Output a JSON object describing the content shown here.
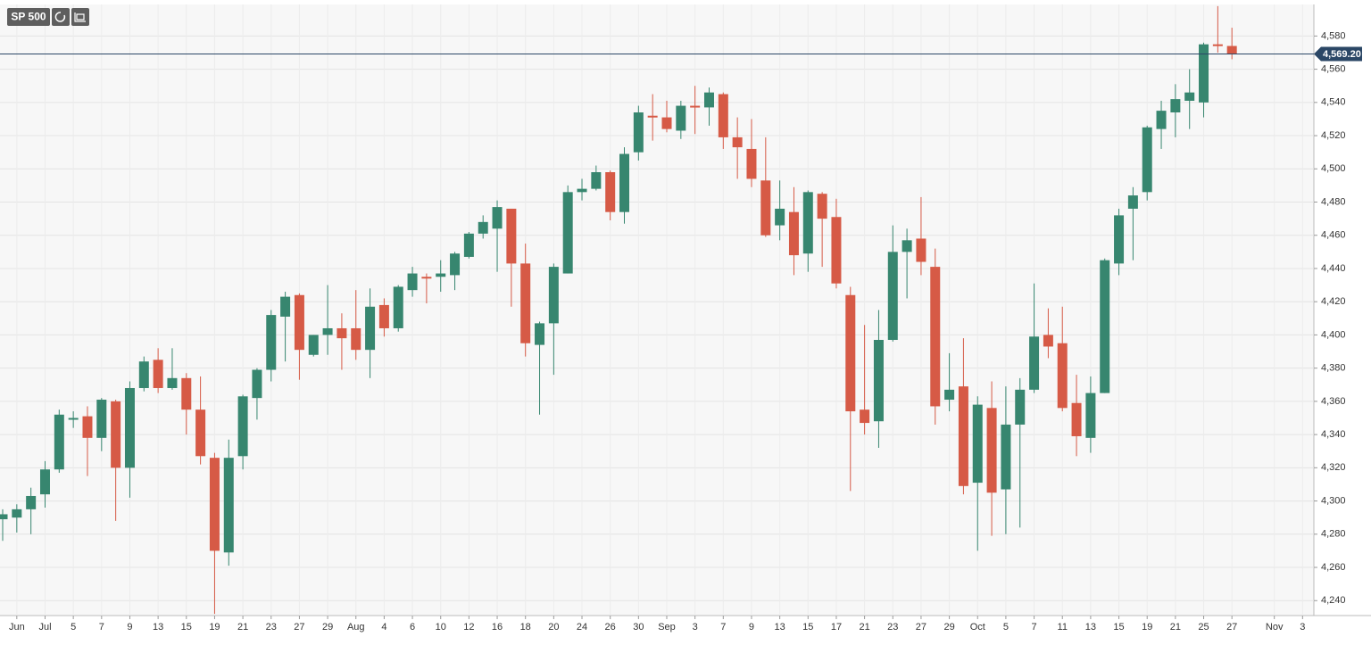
{
  "chart_data": {
    "type": "candlestick",
    "title": "SP 500",
    "categories": [
      null,
      "Jun",
      null,
      "Jul",
      null,
      "5",
      null,
      "7",
      null,
      "9",
      null,
      "13",
      null,
      "15",
      null,
      "19",
      null,
      "21",
      null,
      "23",
      null,
      "27",
      null,
      "29",
      null,
      "Aug",
      null,
      "4",
      null,
      "6",
      null,
      "10",
      null,
      "12",
      null,
      "16",
      null,
      "18",
      null,
      "20",
      null,
      "24",
      null,
      "26",
      null,
      "30",
      null,
      "Sep",
      null,
      "3",
      null,
      "7",
      null,
      "9",
      null,
      "13",
      null,
      "15",
      null,
      "17",
      null,
      "21",
      null,
      "23",
      null,
      "27",
      null,
      "29",
      null,
      "Oct",
      null,
      "5",
      null,
      "7",
      null,
      "11",
      null,
      "13",
      null,
      "15",
      null,
      "19",
      null,
      "21",
      null,
      "25",
      null,
      "27",
      null,
      null,
      "Nov",
      null,
      "3"
    ],
    "open": [
      4289,
      4290,
      4295,
      4304,
      4319,
      4349.5,
      4351,
      4338,
      4360,
      4320,
      4368,
      4385,
      4368,
      4374,
      4355,
      4326,
      4269,
      4327,
      4362,
      4379,
      4411,
      4424,
      4388,
      4400,
      4404,
      4404,
      4391,
      4418,
      4404,
      4427,
      4435,
      4435,
      4436,
      4447,
      4461,
      4464,
      4476,
      4443,
      4394,
      4407,
      4437,
      4486,
      4488,
      4498,
      4474,
      4510,
      4532,
      4531,
      4523,
      4538,
      4537,
      4545,
      4519,
      4512,
      4493,
      4466,
      4474,
      4449,
      4485,
      4471,
      4424,
      4355,
      4348,
      4397,
      4450,
      4458,
      4441,
      4361,
      4369,
      4311,
      4356,
      4307,
      4346,
      4367,
      4400,
      4395,
      4359,
      4338,
      4365,
      4443,
      4476,
      4486,
      4524,
      4534,
      4541,
      4540,
      4575,
      4574,
      null,
      null,
      null,
      null,
      null
    ],
    "high": [
      4295,
      4298,
      4308,
      4324,
      4355,
      4354,
      4357,
      4362,
      4361,
      4372,
      4387,
      4392,
      4392,
      4377,
      4375,
      4329,
      4337,
      4364,
      4380,
      4415,
      4426,
      4425,
      4400,
      4430,
      4413,
      4427,
      4428,
      4422,
      4430,
      4441,
      4437,
      4445,
      4450,
      4462,
      4472,
      4481,
      4476,
      4455,
      4408,
      4443,
      4490,
      4494,
      4502,
      4499,
      4513,
      4538,
      4545,
      4541,
      4541,
      4550,
      4549,
      4546,
      4531,
      4530,
      4519,
      4493,
      4489,
      4487,
      4486,
      4482,
      4429,
      4406,
      4415,
      4466,
      4464,
      4483,
      4452,
      4389,
      4398,
      4363,
      4372,
      4369,
      4374,
      4431,
      4416,
      4417,
      4376,
      4375,
      4446,
      4476,
      4489,
      4526,
      4541,
      4551,
      4560,
      4576,
      4598,
      4585,
      null,
      null,
      null,
      null,
      null
    ],
    "low": [
      4276,
      4281,
      4280,
      4296,
      4317,
      4344,
      4315,
      4330,
      4288,
      4302,
      4366,
      4365,
      4367,
      4340,
      4322,
      4232,
      4261,
      4319,
      4349,
      4372,
      4384,
      4373,
      4387,
      4388,
      4379,
      4385,
      4374,
      4399,
      4402,
      4423,
      4419,
      4426,
      4427,
      4446,
      4458,
      4438,
      4417,
      4387,
      4352,
      4376,
      4437,
      4481,
      4487,
      4469,
      4467,
      4505,
      4517,
      4522,
      4518,
      4521,
      4526,
      4512,
      4494,
      4489,
      4459,
      4457,
      4436,
      4438,
      4441,
      4428,
      4306,
      4340,
      4332,
      4396,
      4422,
      4436,
      4346,
      4354,
      4304,
      4270,
      4279,
      4280,
      4284,
      4365,
      4386,
      4354,
      4327,
      4329,
      4365,
      4436,
      4445,
      4481,
      4512,
      4519,
      4524,
      4531,
      4570,
      4566,
      null,
      null,
      null,
      null,
      null
    ],
    "close": [
      4292,
      4295,
      4303,
      4319,
      4352,
      4350,
      4338,
      4361,
      4320,
      4368,
      4384,
      4368,
      4374,
      4355,
      4327,
      4270,
      4326,
      4363,
      4379,
      4412,
      4423,
      4391,
      4400,
      4404,
      4398,
      4391,
      4417,
      4404,
      4429,
      4437,
      4434,
      4437,
      4449,
      4461,
      4468,
      4477,
      4443,
      4395,
      4407,
      4441,
      4486,
      4488,
      4498,
      4474,
      4509,
      4534,
      4531,
      4524,
      4538,
      4537,
      4546,
      4519,
      4513,
      4494,
      4460,
      4476,
      4448,
      4486,
      4470,
      4431,
      4354,
      4347,
      4397,
      4450,
      4457,
      4444,
      4357,
      4367,
      4309,
      4358,
      4305,
      4346,
      4367,
      4399,
      4393,
      4356,
      4339,
      4365,
      4445,
      4472,
      4484,
      4525,
      4535,
      4542,
      4546,
      4575,
      4574,
      4569.2,
      null,
      null,
      null,
      null,
      null
    ],
    "up_color": "#37866f",
    "down_color": "#d65a46",
    "last_price": {
      "value": 4569.2,
      "label": "4,569.20"
    },
    "ylim": [
      4231,
      4599
    ],
    "yticks": [
      {
        "value": 4240,
        "label": "4,240"
      },
      {
        "value": 4260,
        "label": "4,260"
      },
      {
        "value": 4280,
        "label": "4,280"
      },
      {
        "value": 4300,
        "label": "4,300"
      },
      {
        "value": 4320,
        "label": "4,320"
      },
      {
        "value": 4340,
        "label": "4,340"
      },
      {
        "value": 4360,
        "label": "4,360"
      },
      {
        "value": 4380,
        "label": "4,380"
      },
      {
        "value": 4400,
        "label": "4,400"
      },
      {
        "value": 4420,
        "label": "4,420"
      },
      {
        "value": 4440,
        "label": "4,440"
      },
      {
        "value": 4460,
        "label": "4,460"
      },
      {
        "value": 4480,
        "label": "4,480"
      },
      {
        "value": 4500,
        "label": "4,500"
      },
      {
        "value": 4520,
        "label": "4,520"
      },
      {
        "value": 4540,
        "label": "4,540"
      },
      {
        "value": 4560,
        "label": "4,560"
      },
      {
        "value": 4580,
        "label": "4,580"
      }
    ],
    "grid": true
  }
}
